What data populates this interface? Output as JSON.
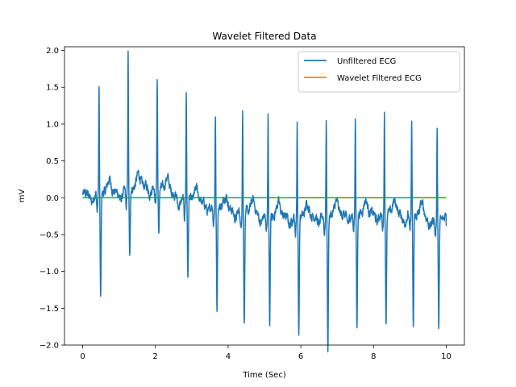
{
  "chart_data": {
    "type": "line",
    "title": "Wavelet Filtered Data",
    "xlabel": "Time (Sec)",
    "ylabel": "mV",
    "xlim": [
      -0.5,
      10.5
    ],
    "ylim": [
      -2.0,
      2.05
    ],
    "xticks": [
      0,
      2,
      4,
      6,
      8,
      10
    ],
    "xtick_labels": [
      "0",
      "2",
      "4",
      "6",
      "8",
      "10"
    ],
    "yticks": [
      -2.0,
      -1.5,
      -1.0,
      -0.5,
      0.0,
      0.5,
      1.0,
      1.5,
      2.0
    ],
    "ytick_labels": [
      "−2.0",
      "−1.5",
      "−1.0",
      "−0.5",
      "0.0",
      "0.5",
      "1.0",
      "1.5",
      "2.0"
    ],
    "legend_position": "top-right",
    "grid": false,
    "series": [
      {
        "name": "Unfiltered ECG",
        "color": "#1f77b4",
        "beats": [
          {
            "t": 0.45,
            "peak": 1.42,
            "trough": -1.45
          },
          {
            "t": 1.25,
            "peak": 1.85,
            "trough": -0.95
          },
          {
            "t": 2.05,
            "peak": 1.48,
            "trough": -0.65
          },
          {
            "t": 2.85,
            "peak": 1.46,
            "trough": -1.08
          },
          {
            "t": 3.65,
            "peak": 1.25,
            "trough": -1.42
          },
          {
            "t": 4.4,
            "peak": 1.38,
            "trough": -1.5
          },
          {
            "t": 5.1,
            "peak": 1.38,
            "trough": -1.5
          },
          {
            "t": 5.9,
            "peak": 1.28,
            "trough": -1.62
          },
          {
            "t": 6.7,
            "peak": 1.3,
            "trough": -1.83
          },
          {
            "t": 7.5,
            "peak": 1.35,
            "trough": -1.57
          },
          {
            "t": 8.3,
            "peak": 1.38,
            "trough": -1.47
          },
          {
            "t": 9.05,
            "peak": 1.27,
            "trough": -1.57
          },
          {
            "t": 9.75,
            "peak": 1.26,
            "trough": -1.5
          }
        ],
        "x_end": 10.0,
        "y_end": -0.38
      },
      {
        "name": "Wavelet Filtered ECG",
        "color": "#ff7f0e",
        "x": [
          0,
          10
        ],
        "values": [
          0.0,
          0.0
        ]
      },
      {
        "name": "",
        "color": "#2ca02c",
        "x": [
          0,
          10
        ],
        "values": [
          0.0,
          0.0
        ]
      }
    ]
  }
}
